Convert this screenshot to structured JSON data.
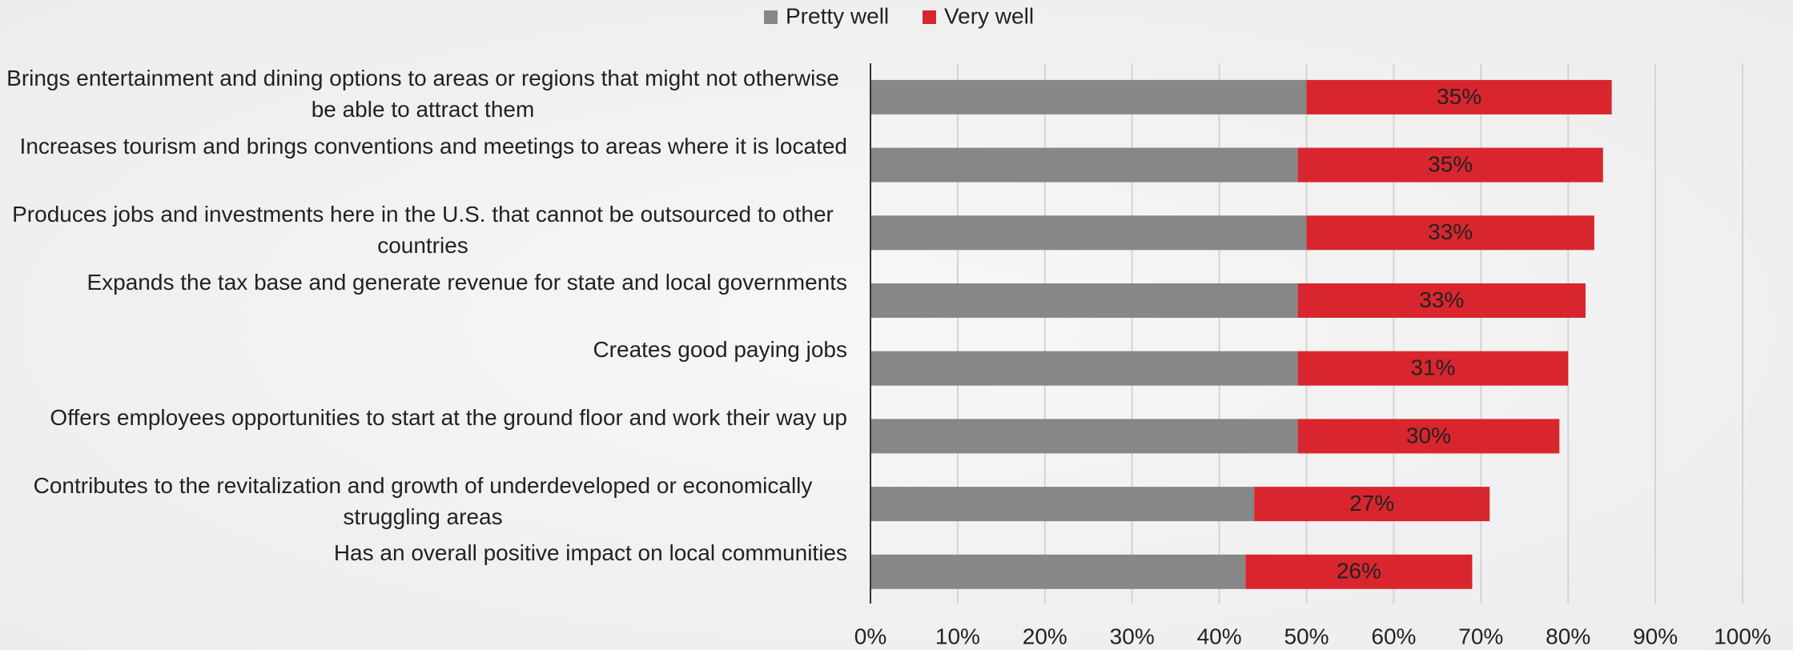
{
  "chart_data": {
    "type": "stacked_barh",
    "categories": [
      "Brings entertainment and dining options to areas or regions that might not otherwise be able to attract them",
      "Increases tourism and brings conventions and meetings to areas where it is located",
      "Produces jobs and investments here in the U.S. that cannot be outsourced to other countries",
      "Expands the tax base and generate revenue for state and local governments",
      "Creates good paying jobs",
      "Offers employees opportunities to start at the ground floor and work their way up",
      "Contributes to the revitalization and growth of underdeveloped or economically struggling areas",
      "Has an overall positive impact on local communities"
    ],
    "series": [
      {
        "name": "Pretty well",
        "color": "#878787",
        "values": [
          50,
          49,
          50,
          49,
          49,
          49,
          44,
          43
        ]
      },
      {
        "name": "Very well",
        "color": "#d9262e",
        "values": [
          35,
          35,
          33,
          33,
          31,
          30,
          27,
          26
        ],
        "value_labels": [
          "35%",
          "35%",
          "33%",
          "33%",
          "31%",
          "30%",
          "27%",
          "26%"
        ]
      }
    ],
    "xlim": [
      0,
      100
    ],
    "xticks": [
      {
        "value": 0,
        "label": "0%"
      },
      {
        "value": 10,
        "label": "10%"
      },
      {
        "value": 20,
        "label": "20%"
      },
      {
        "value": 30,
        "label": "30%"
      },
      {
        "value": 40,
        "label": "40%"
      },
      {
        "value": 50,
        "label": "50%"
      },
      {
        "value": 60,
        "label": "60%"
      },
      {
        "value": 70,
        "label": "70%"
      },
      {
        "value": 80,
        "label": "80%"
      },
      {
        "value": 90,
        "label": "90%"
      },
      {
        "value": 100,
        "label": "100%"
      }
    ],
    "grid": true,
    "legend": "top"
  }
}
